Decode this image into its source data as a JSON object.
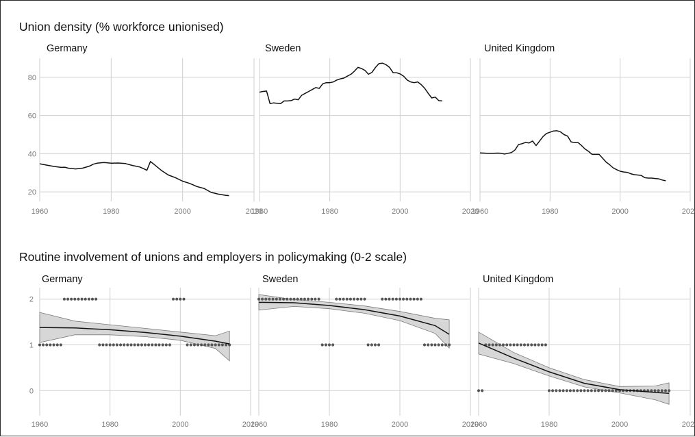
{
  "chart_data": [
    {
      "type": "line",
      "title": "Union density (% workforce unionised)",
      "xlim": [
        1960,
        2020
      ],
      "ylim": [
        15,
        90
      ],
      "x_ticks": [
        1960,
        1980,
        2000,
        2020
      ],
      "y_ticks": [
        20,
        40,
        60,
        80
      ],
      "grid": true,
      "panels": [
        {
          "name": "Germany",
          "x": [
            1960,
            1962,
            1964,
            1966,
            1967,
            1968,
            1970,
            1972,
            1974,
            1975,
            1976,
            1978,
            1979,
            1980,
            1982,
            1984,
            1986,
            1988,
            1989,
            1990,
            1991,
            1992,
            1994,
            1996,
            1998,
            2000,
            2002,
            2004,
            2006,
            2008,
            2010,
            2012,
            2013
          ],
          "y": [
            34.7,
            34,
            33.3,
            32.8,
            32.9,
            32.4,
            32,
            32.4,
            33.5,
            34.5,
            35,
            35.4,
            35.2,
            35,
            35.1,
            34.8,
            33.8,
            33,
            32.2,
            31.3,
            35.9,
            34.4,
            31.3,
            28.8,
            27.4,
            25.6,
            24.4,
            22.8,
            21.8,
            19.7,
            18.8,
            18.2,
            18
          ]
        },
        {
          "name": "Sweden",
          "x": [
            1960,
            1961,
            1962,
            1963,
            1964,
            1965,
            1966,
            1967,
            1968,
            1969,
            1970,
            1971,
            1972,
            1973,
            1974,
            1975,
            1976,
            1977,
            1978,
            1979,
            1980,
            1981,
            1982,
            1983,
            1984,
            1985,
            1986,
            1987,
            1988,
            1989,
            1990,
            1991,
            1992,
            1993,
            1994,
            1995,
            1996,
            1997,
            1998,
            1999,
            2000,
            2001,
            2002,
            2003,
            2004,
            2005,
            2006,
            2007,
            2008,
            2009,
            2010,
            2011,
            2012
          ],
          "y": [
            72.2,
            72.6,
            72.8,
            66.2,
            66.6,
            66.4,
            66.2,
            67.6,
            67.6,
            67.8,
            68.6,
            68.2,
            70.6,
            71.6,
            72.6,
            73.6,
            74.6,
            74.2,
            76.6,
            77.2,
            77.2,
            77.6,
            78.6,
            79.2,
            79.6,
            80.6,
            81.6,
            83.2,
            85.2,
            84.6,
            83.6,
            81.6,
            82.6,
            85.2,
            87.2,
            87.4,
            86.6,
            85.2,
            82.4,
            82.4,
            81.8,
            80.6,
            78.6,
            77.6,
            77.2,
            77.6,
            76.2,
            74.2,
            71.6,
            69.2,
            69.6,
            67.8,
            67.6
          ]
        },
        {
          "name": "United Kingdom",
          "x": [
            1960,
            1962,
            1964,
            1965,
            1966,
            1967,
            1968,
            1969,
            1970,
            1971,
            1972,
            1973,
            1974,
            1975,
            1976,
            1977,
            1978,
            1979,
            1980,
            1981,
            1982,
            1983,
            1984,
            1985,
            1986,
            1987,
            1988,
            1989,
            1990,
            1991,
            1992,
            1993,
            1994,
            1995,
            1996,
            1997,
            1998,
            1999,
            2000,
            2001,
            2002,
            2003,
            2004,
            2005,
            2006,
            2007,
            2008,
            2009,
            2010,
            2011,
            2012,
            2013
          ],
          "y": [
            40.4,
            40.2,
            40.2,
            40.3,
            40.2,
            39.8,
            40.2,
            40.6,
            42,
            44.8,
            45.2,
            45.9,
            45.6,
            46.6,
            44.2,
            46.6,
            49,
            50.6,
            51.2,
            51.9,
            52,
            51.4,
            50,
            49.2,
            46.2,
            45.8,
            45.8,
            44.2,
            42.4,
            41.2,
            39.6,
            39.6,
            39.6,
            37.6,
            35.6,
            34.2,
            32.6,
            31.6,
            30.8,
            30.4,
            30.2,
            29.5,
            29,
            28.8,
            28.6,
            27.4,
            27.2,
            27.2,
            27,
            26.8,
            26.2,
            25.8
          ]
        }
      ]
    },
    {
      "type": "scatter",
      "title": "Routine involvement of unions and employers in policymaking (0-2 scale)",
      "xlim": [
        1960,
        2020
      ],
      "ylim": [
        -0.55,
        2.25
      ],
      "x_ticks": [
        1960,
        1980,
        2000,
        2020
      ],
      "y_ticks": [
        0,
        1,
        2
      ],
      "grid": true,
      "smooth_fit": true,
      "panels": [
        {
          "name": "Germany",
          "segments": [
            {
              "from": 1960,
              "to": 1966,
              "y": 1
            },
            {
              "from": 1967,
              "to": 1976,
              "y": 2
            },
            {
              "from": 1977,
              "to": 1997,
              "y": 1
            },
            {
              "from": 1998,
              "to": 2001,
              "y": 2
            },
            {
              "from": 2002,
              "to": 2014,
              "y": 1
            }
          ],
          "fit": {
            "x": [
              1960,
              1970,
              1980,
              1990,
              2000,
              2010,
              2014
            ],
            "y": [
              1.38,
              1.37,
              1.33,
              1.27,
              1.19,
              1.08,
              1.02
            ]
          },
          "band": {
            "upper": [
              1.71,
              1.52,
              1.44,
              1.36,
              1.28,
              1.2,
              1.3
            ],
            "lower": [
              1.05,
              1.22,
              1.22,
              1.18,
              1.1,
              0.92,
              0.65
            ]
          }
        },
        {
          "name": "Sweden",
          "segments": [
            {
              "from": 1960,
              "to": 1977,
              "y": 2
            },
            {
              "from": 1978,
              "to": 1981,
              "y": 1
            },
            {
              "from": 1982,
              "to": 1990,
              "y": 2
            },
            {
              "from": 1991,
              "to": 1994,
              "y": 1
            },
            {
              "from": 1995,
              "to": 2006,
              "y": 2
            },
            {
              "from": 2007,
              "to": 2014,
              "y": 1
            }
          ],
          "fit": {
            "x": [
              1960,
              1970,
              1980,
              1990,
              2000,
              2010,
              2014
            ],
            "y": [
              1.93,
              1.92,
              1.86,
              1.77,
              1.63,
              1.42,
              1.23
            ]
          },
          "band": {
            "upper": [
              2.1,
              1.99,
              1.93,
              1.85,
              1.73,
              1.58,
              1.55
            ],
            "lower": [
              1.76,
              1.84,
              1.79,
              1.69,
              1.53,
              1.25,
              0.93
            ]
          }
        },
        {
          "name": "United Kingdom",
          "segments": [
            {
              "from": 1960,
              "to": 1961,
              "y": 0
            },
            {
              "from": 1962,
              "to": 1979,
              "y": 1
            },
            {
              "from": 1980,
              "to": 2014,
              "y": 0
            }
          ],
          "fit": {
            "x": [
              1960,
              1970,
              1980,
              1990,
              2000,
              2010,
              2014
            ],
            "y": [
              1.04,
              0.71,
              0.41,
              0.16,
              0.02,
              -0.04,
              -0.06
            ]
          },
          "band": {
            "upper": [
              1.28,
              0.83,
              0.5,
              0.24,
              0.09,
              0.1,
              0.17
            ],
            "lower": [
              0.8,
              0.59,
              0.32,
              0.08,
              -0.05,
              -0.2,
              -0.3
            ]
          }
        }
      ]
    }
  ]
}
